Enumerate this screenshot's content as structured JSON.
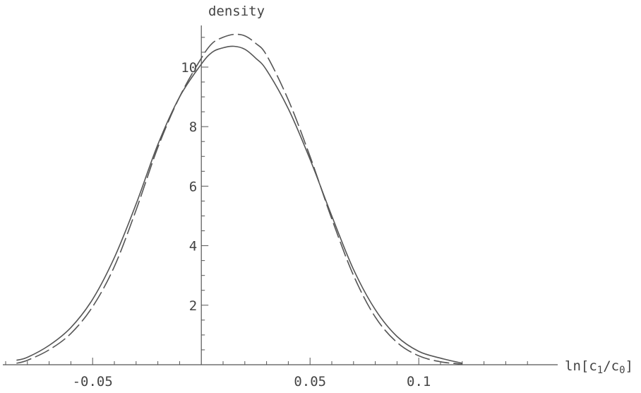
{
  "chart_data": {
    "type": "line",
    "title": "",
    "ylabel": "density",
    "xlabel": {
      "prefix": "ln[c",
      "sub1": "1",
      "mid": "/c",
      "sub2": "0",
      "suffix": "]"
    },
    "xlim": [
      -0.09,
      0.16
    ],
    "ylim": [
      0,
      11.4
    ],
    "x_ticks": [
      {
        "value": -0.05,
        "label": "-0.05"
      },
      {
        "value": 0.05,
        "label": "0.05"
      },
      {
        "value": 0.1,
        "label": "0.1"
      }
    ],
    "y_ticks": [
      {
        "value": 2,
        "label": "2"
      },
      {
        "value": 4,
        "label": "4"
      },
      {
        "value": 6,
        "label": "6"
      },
      {
        "value": 8,
        "label": "8"
      },
      {
        "value": 10,
        "label": "10"
      }
    ],
    "grid": false,
    "series": [
      {
        "style": "solid",
        "color": "#555555",
        "x": [
          -0.085,
          -0.08,
          -0.07,
          -0.06,
          -0.05,
          -0.04,
          -0.03,
          -0.02,
          -0.01,
          0.0,
          0.005,
          0.01,
          0.015,
          0.02,
          0.025,
          0.03,
          0.04,
          0.05,
          0.06,
          0.07,
          0.08,
          0.09,
          0.1,
          0.11,
          0.12
        ],
        "y": [
          0.15,
          0.25,
          0.65,
          1.25,
          2.2,
          3.6,
          5.4,
          7.4,
          9.0,
          10.1,
          10.5,
          10.65,
          10.7,
          10.6,
          10.3,
          9.9,
          8.6,
          6.9,
          5.0,
          3.2,
          1.85,
          0.95,
          0.45,
          0.22,
          0.05
        ]
      },
      {
        "style": "dashed",
        "color": "#555555",
        "x": [
          -0.085,
          -0.08,
          -0.07,
          -0.06,
          -0.05,
          -0.04,
          -0.03,
          -0.02,
          -0.01,
          0.0,
          0.005,
          0.01,
          0.015,
          0.02,
          0.025,
          0.03,
          0.04,
          0.05,
          0.06,
          0.07,
          0.08,
          0.09,
          0.1,
          0.11,
          0.12
        ],
        "y": [
          0.05,
          0.15,
          0.5,
          1.05,
          1.95,
          3.3,
          5.2,
          7.3,
          9.0,
          10.3,
          10.8,
          11.0,
          11.1,
          11.05,
          10.8,
          10.4,
          8.9,
          7.0,
          4.9,
          3.0,
          1.6,
          0.75,
          0.3,
          0.1,
          0.02
        ]
      }
    ]
  }
}
